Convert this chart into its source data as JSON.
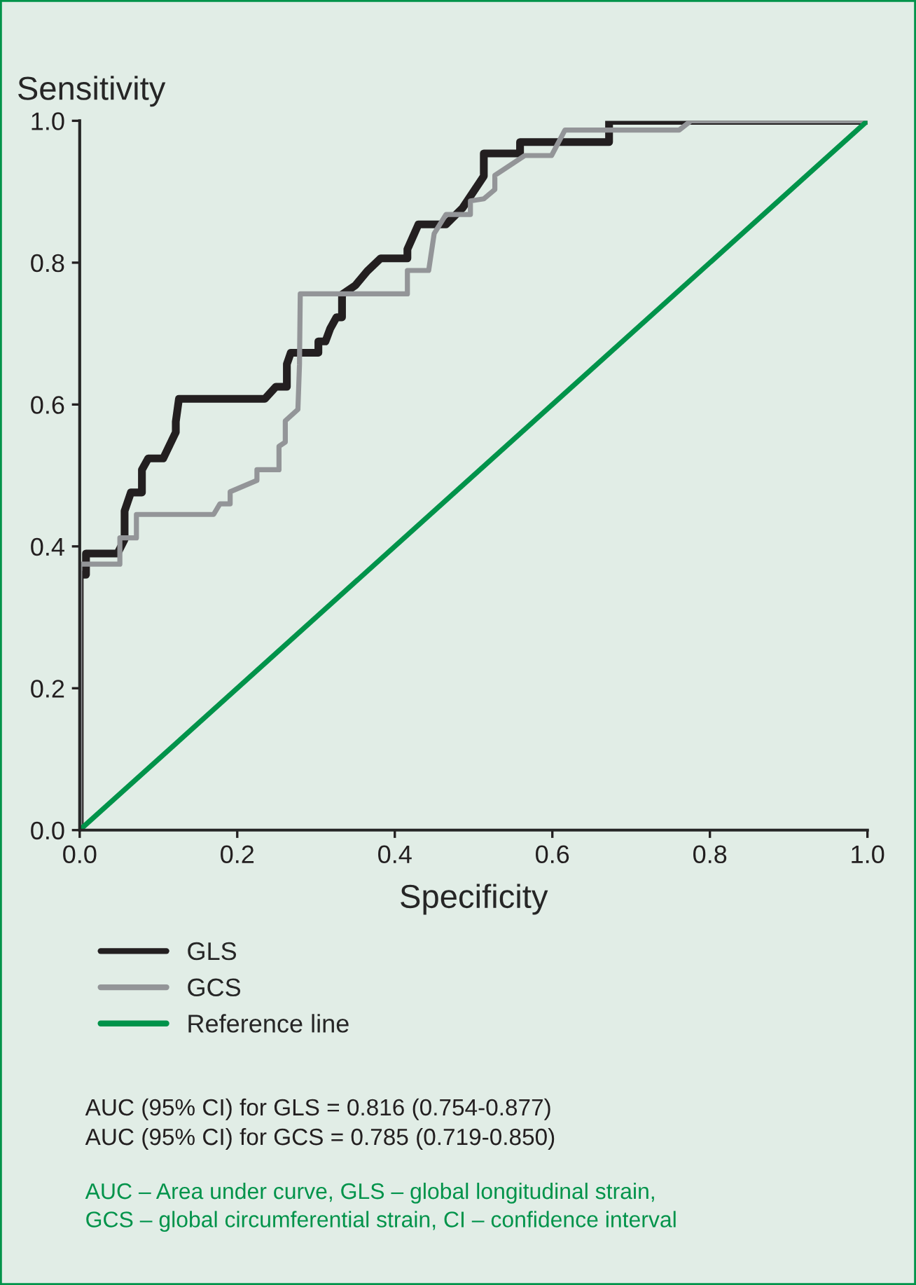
{
  "chart_data": {
    "type": "line",
    "xlabel": "Specificity",
    "ylabel": "Sensitivity",
    "xlim": [
      0,
      1
    ],
    "ylim": [
      0,
      1
    ],
    "xticks": [
      {
        "value": 0,
        "label": "0.0"
      },
      {
        "value": 0.2,
        "label": "0.2"
      },
      {
        "value": 0.4,
        "label": "0.4"
      },
      {
        "value": 0.6,
        "label": "0.6"
      },
      {
        "value": 0.8,
        "label": "0.8"
      },
      {
        "value": 1,
        "label": "1.0"
      }
    ],
    "yticks": [
      {
        "value": 0,
        "label": "0.0"
      },
      {
        "value": 0.2,
        "label": "0.2"
      },
      {
        "value": 0.4,
        "label": "0.4"
      },
      {
        "value": 0.6,
        "label": "0.6"
      },
      {
        "value": 0.8,
        "label": "0.8"
      },
      {
        "value": 1,
        "label": "1.0"
      }
    ],
    "series": [
      {
        "name": "GLS",
        "color": "#231f20",
        "x": [
          0,
          0,
          0.008,
          0.008,
          0.048,
          0.057,
          0.057,
          0.065,
          0.079,
          0.079,
          0.087,
          0.106,
          0.122,
          0.122,
          0.126,
          0.235,
          0.249,
          0.263,
          0.263,
          0.268,
          0.303,
          0.303,
          0.312,
          0.318,
          0.326,
          0.333,
          0.333,
          0.35,
          0.365,
          0.382,
          0.416,
          0.416,
          0.43,
          0.465,
          0.486,
          0.513,
          0.513,
          0.559,
          0.559,
          0.672,
          0.672,
          1
        ],
        "values": [
          0,
          0.36,
          0.36,
          0.39,
          0.39,
          0.41,
          0.45,
          0.476,
          0.476,
          0.508,
          0.524,
          0.524,
          0.561,
          0.576,
          0.608,
          0.608,
          0.625,
          0.625,
          0.657,
          0.673,
          0.673,
          0.689,
          0.689,
          0.707,
          0.723,
          0.723,
          0.755,
          0.768,
          0.788,
          0.806,
          0.806,
          0.819,
          0.854,
          0.854,
          0.877,
          0.922,
          0.954,
          0.954,
          0.97,
          0.97,
          1,
          1
        ]
      },
      {
        "name": "GCS",
        "color": "#939598",
        "x": [
          0,
          0,
          0.051,
          0.051,
          0.072,
          0.072,
          0.17,
          0.178,
          0.191,
          0.191,
          0.225,
          0.225,
          0.253,
          0.253,
          0.261,
          0.261,
          0.277,
          0.279,
          0.28,
          0.416,
          0.416,
          0.443,
          0.45,
          0.465,
          0.496,
          0.496,
          0.513,
          0.527,
          0.527,
          0.565,
          0.599,
          0.616,
          0.761,
          0.776,
          1
        ],
        "values": [
          0,
          0.375,
          0.375,
          0.412,
          0.412,
          0.445,
          0.445,
          0.46,
          0.46,
          0.477,
          0.493,
          0.508,
          0.508,
          0.541,
          0.547,
          0.577,
          0.593,
          0.656,
          0.756,
          0.756,
          0.789,
          0.789,
          0.841,
          0.868,
          0.868,
          0.887,
          0.89,
          0.903,
          0.923,
          0.951,
          0.951,
          0.987,
          0.987,
          1,
          1
        ]
      },
      {
        "name": "Reference line",
        "color": "#00934a",
        "x": [
          0,
          1
        ],
        "values": [
          0,
          1
        ]
      }
    ],
    "legend": "bottom",
    "annotations": [
      "AUC (95% CI) for GLS = 0.816 (0.754-0.877)",
      "AUC (95% CI) for GCS = 0.785 (0.719-0.850)",
      "AUC – Area under curve, GLS – global longitudinal strain,",
      "GCS – global circumferential strain, CI – confidence interval"
    ]
  }
}
